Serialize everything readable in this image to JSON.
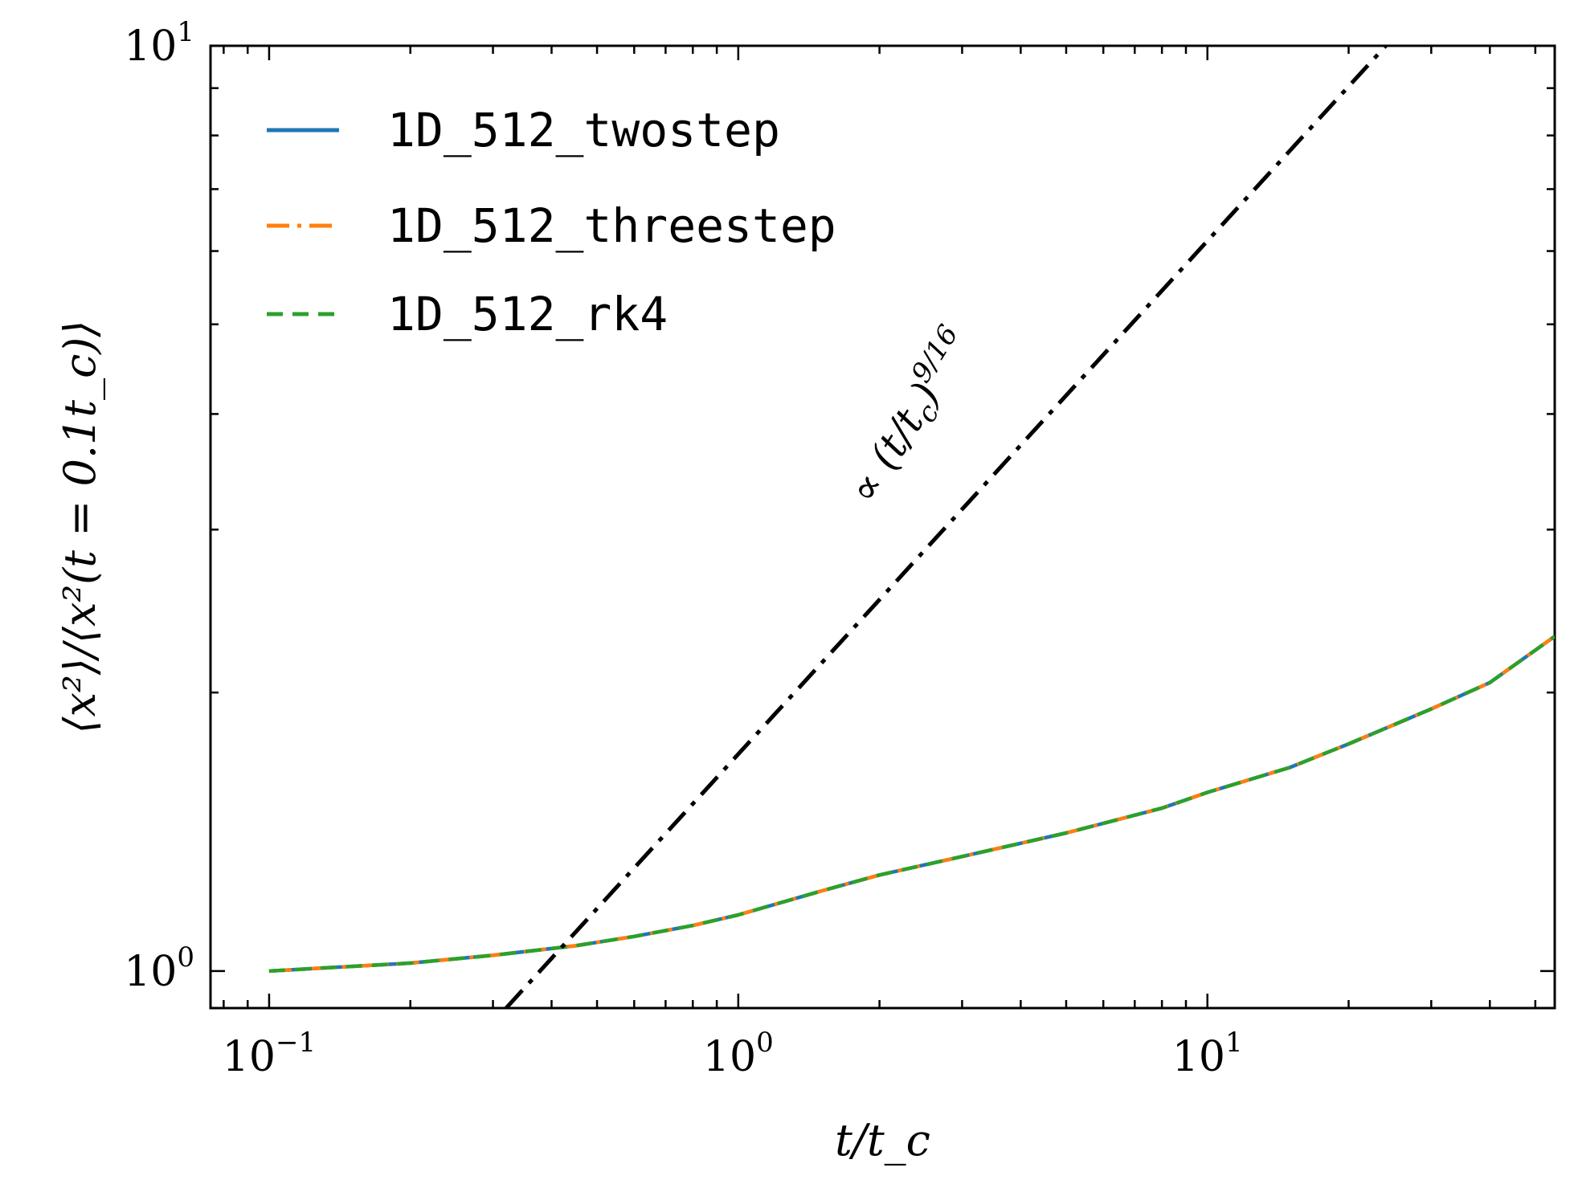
{
  "chart_data": {
    "type": "line",
    "xscale": "log",
    "yscale": "log",
    "xlim": [
      0.075,
      55
    ],
    "ylim": [
      0.912,
      10
    ],
    "xlabel": "t/t_c",
    "ylabel": "⟨x²⟩/⟨x²(t = 0.1t_c)⟩",
    "x_ticks": [
      {
        "value": 0.1,
        "base": "10",
        "exp": "−1"
      },
      {
        "value": 1,
        "base": "10",
        "exp": "0"
      },
      {
        "value": 10,
        "base": "10",
        "exp": "1"
      }
    ],
    "y_ticks": [
      {
        "value": 1,
        "base": "10",
        "exp": "0"
      },
      {
        "value": 10,
        "base": "10",
        "exp": "1"
      }
    ],
    "legend": {
      "position": "upper-left"
    },
    "series": [
      {
        "name": "1D_512_twostep",
        "color": "#1f77b4",
        "style": "solid",
        "x": [
          0.1,
          0.2,
          0.3,
          0.45,
          0.6,
          0.8,
          1.0,
          1.5,
          2.0,
          3.0,
          5.0,
          8.0,
          10,
          15,
          20,
          30,
          40,
          55
        ],
        "y": [
          1.0,
          1.02,
          1.04,
          1.065,
          1.09,
          1.12,
          1.15,
          1.22,
          1.27,
          1.33,
          1.41,
          1.5,
          1.56,
          1.66,
          1.76,
          1.92,
          2.05,
          2.3
        ]
      },
      {
        "name": "1D_512_threestep",
        "color": "#ff7f0e",
        "style": "dashdot",
        "x": [
          0.1,
          0.2,
          0.3,
          0.45,
          0.6,
          0.8,
          1.0,
          1.5,
          2.0,
          3.0,
          5.0,
          8.0,
          10,
          15,
          20,
          30,
          40,
          55
        ],
        "y": [
          1.0,
          1.02,
          1.04,
          1.065,
          1.09,
          1.12,
          1.15,
          1.22,
          1.27,
          1.33,
          1.41,
          1.5,
          1.56,
          1.66,
          1.76,
          1.92,
          2.05,
          2.3
        ]
      },
      {
        "name": "1D_512_rk4",
        "color": "#2ca02c",
        "style": "dashed",
        "x": [
          0.1,
          0.2,
          0.3,
          0.45,
          0.6,
          0.8,
          1.0,
          1.5,
          2.0,
          3.0,
          5.0,
          8.0,
          10,
          15,
          20,
          30,
          40,
          55
        ],
        "y": [
          1.0,
          1.02,
          1.04,
          1.065,
          1.09,
          1.12,
          1.15,
          1.22,
          1.27,
          1.33,
          1.41,
          1.5,
          1.56,
          1.66,
          1.76,
          1.92,
          2.05,
          2.3
        ]
      }
    ],
    "reference_line": {
      "color": "#000000",
      "style": "dashdot",
      "exponent": 0.5625,
      "x": [
        0.32,
        24
      ],
      "y": [
        0.912,
        10.0
      ]
    },
    "annotation": {
      "text_prefix": "∝ (t/t",
      "text_sub": "c",
      "text_suffix": ")",
      "text_sup": "9/16",
      "rotation_deg": -58
    }
  }
}
